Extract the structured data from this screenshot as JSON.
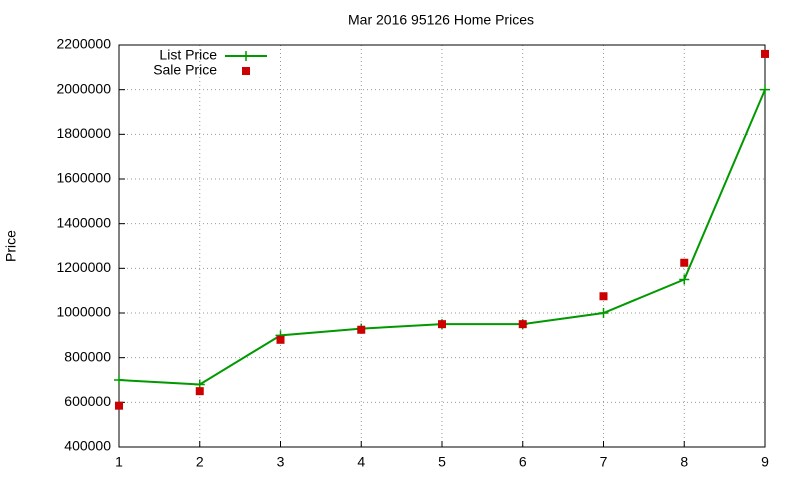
{
  "chart_data": {
    "type": "line",
    "title": "Mar 2016 95126 Home Prices",
    "y_label": "Price",
    "x": [
      1,
      2,
      3,
      4,
      5,
      6,
      7,
      8,
      9
    ],
    "series": [
      {
        "name": "List Price",
        "color": "#009900",
        "mode": "lines+points",
        "values": [
          700000,
          680000,
          900000,
          930000,
          950000,
          950000,
          1000000,
          1150000,
          2000000
        ]
      },
      {
        "name": "Sale Price",
        "color": "#cc0000",
        "mode": "points",
        "values": [
          585000,
          650000,
          880000,
          925000,
          950000,
          950000,
          1075000,
          1225000,
          2160000
        ]
      }
    ],
    "xlim": [
      1,
      9
    ],
    "xticks": [
      1,
      2,
      3,
      4,
      5,
      6,
      7,
      8,
      9
    ],
    "ylim": [
      400000,
      2200000
    ],
    "yticks": [
      400000,
      600000,
      800000,
      1000000,
      1200000,
      1400000,
      1600000,
      1800000,
      2000000,
      2200000
    ],
    "grid": true,
    "legend": "top-left"
  }
}
